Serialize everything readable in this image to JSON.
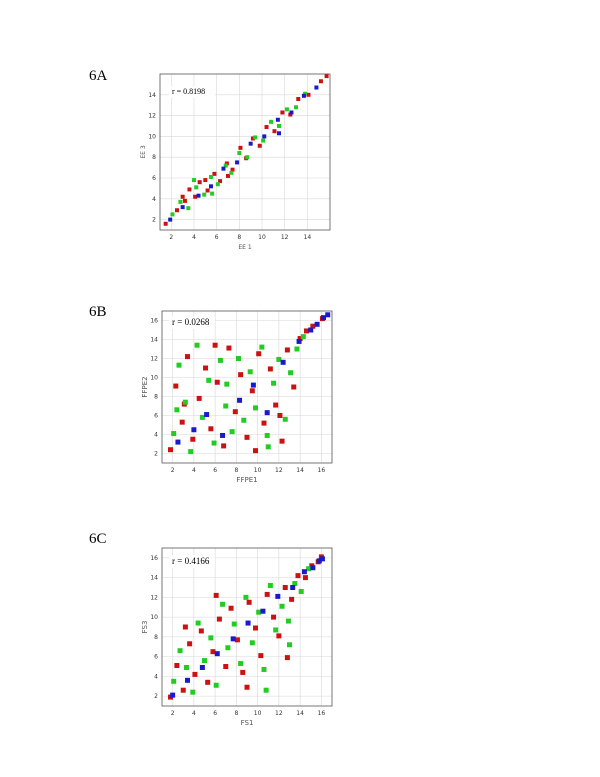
{
  "colors": {
    "red": "#cc1111",
    "green": "#22cc22",
    "blue": "#1a1acc",
    "grid": "#d8d8d8",
    "frame": "#555555"
  },
  "chart_data": [
    {
      "type": "scatter",
      "panel": "6A",
      "annotation": "r = 0.8198",
      "xlabel": "EE 1",
      "ylabel": "EE 3",
      "xlim": [
        1,
        16
      ],
      "ylim": [
        1,
        16
      ],
      "xticks": [
        2,
        4,
        6,
        8,
        10,
        12,
        14
      ],
      "yticks": [
        2,
        4,
        6,
        8,
        10,
        12,
        14
      ],
      "grid": true,
      "series": [
        {
          "color": "red",
          "points": [
            [
              1.5,
              1.6
            ],
            [
              2.5,
              2.9
            ],
            [
              3.2,
              3.8
            ],
            [
              3.6,
              4.9
            ],
            [
              4.1,
              4.2
            ],
            [
              4.5,
              5.6
            ],
            [
              5.2,
              4.8
            ],
            [
              5.8,
              6.4
            ],
            [
              6.3,
              5.7
            ],
            [
              6.9,
              7.4
            ],
            [
              7.4,
              6.8
            ],
            [
              8.1,
              8.9
            ],
            [
              8.6,
              7.9
            ],
            [
              9.2,
              9.8
            ],
            [
              9.8,
              9.1
            ],
            [
              10.4,
              10.9
            ],
            [
              11.1,
              10.5
            ],
            [
              11.8,
              12.3
            ],
            [
              12.5,
              12.1
            ],
            [
              13.2,
              13.6
            ],
            [
              14.1,
              14.0
            ],
            [
              15.2,
              15.3
            ],
            [
              15.7,
              15.8
            ],
            [
              3.0,
              4.2
            ],
            [
              5.0,
              5.8
            ],
            [
              7.0,
              6.2
            ]
          ]
        },
        {
          "color": "green",
          "points": [
            [
              2.1,
              2.5
            ],
            [
              2.8,
              3.7
            ],
            [
              3.5,
              3.1
            ],
            [
              4.2,
              5.1
            ],
            [
              4.9,
              4.4
            ],
            [
              5.5,
              6.1
            ],
            [
              6.1,
              5.4
            ],
            [
              6.8,
              7.2
            ],
            [
              7.3,
              6.5
            ],
            [
              8.0,
              8.4
            ],
            [
              8.7,
              8.0
            ],
            [
              9.4,
              9.9
            ],
            [
              10.1,
              9.6
            ],
            [
              10.8,
              11.4
            ],
            [
              11.5,
              11.0
            ],
            [
              12.2,
              12.6
            ],
            [
              13.0,
              12.8
            ],
            [
              13.8,
              14.1
            ],
            [
              4.0,
              5.8
            ],
            [
              5.6,
              4.5
            ]
          ]
        },
        {
          "color": "blue",
          "points": [
            [
              1.9,
              2.0
            ],
            [
              3.0,
              3.2
            ],
            [
              4.4,
              4.3
            ],
            [
              5.5,
              5.2
            ],
            [
              6.6,
              6.9
            ],
            [
              7.8,
              7.5
            ],
            [
              9.0,
              9.3
            ],
            [
              10.2,
              10.0
            ],
            [
              11.4,
              11.6
            ],
            [
              12.6,
              12.3
            ],
            [
              13.7,
              13.9
            ],
            [
              14.8,
              14.7
            ],
            [
              11.5,
              10.3
            ]
          ]
        }
      ]
    },
    {
      "type": "scatter",
      "panel": "6B",
      "annotation": "r = 0.0268",
      "xlabel": "FFPE1",
      "ylabel": "FFPE2",
      "xlim": [
        1,
        17
      ],
      "ylim": [
        1,
        17
      ],
      "xticks": [
        2,
        4,
        6,
        8,
        10,
        12,
        14,
        16
      ],
      "yticks": [
        2,
        4,
        6,
        8,
        10,
        12,
        14,
        16
      ],
      "grid": true,
      "series": [
        {
          "color": "red",
          "points": [
            [
              1.8,
              2.4
            ],
            [
              2.3,
              9.1
            ],
            [
              2.9,
              5.3
            ],
            [
              3.4,
              12.2
            ],
            [
              3.9,
              3.5
            ],
            [
              4.5,
              7.8
            ],
            [
              5.1,
              11.0
            ],
            [
              5.6,
              4.6
            ],
            [
              6.2,
              9.5
            ],
            [
              6.8,
              2.8
            ],
            [
              7.3,
              13.1
            ],
            [
              7.9,
              6.4
            ],
            [
              8.4,
              10.3
            ],
            [
              9.0,
              3.7
            ],
            [
              9.5,
              8.6
            ],
            [
              10.1,
              12.5
            ],
            [
              10.6,
              5.2
            ],
            [
              11.2,
              10.9
            ],
            [
              11.7,
              7.1
            ],
            [
              12.3,
              3.3
            ],
            [
              12.8,
              12.9
            ],
            [
              13.4,
              9.0
            ],
            [
              14.0,
              14.1
            ],
            [
              14.6,
              14.9
            ],
            [
              15.2,
              15.4
            ],
            [
              16.1,
              16.2
            ],
            [
              3.1,
              7.2
            ],
            [
              6.0,
              13.4
            ],
            [
              9.8,
              2.3
            ],
            [
              12.1,
              6.0
            ]
          ]
        },
        {
          "color": "green",
          "points": [
            [
              2.1,
              4.1
            ],
            [
              2.6,
              11.3
            ],
            [
              3.2,
              7.4
            ],
            [
              3.7,
              2.2
            ],
            [
              4.3,
              13.4
            ],
            [
              4.8,
              5.8
            ],
            [
              5.4,
              9.7
            ],
            [
              5.9,
              3.1
            ],
            [
              6.5,
              11.8
            ],
            [
              7.0,
              7.0
            ],
            [
              7.6,
              4.3
            ],
            [
              8.2,
              12.0
            ],
            [
              8.7,
              5.5
            ],
            [
              9.3,
              10.6
            ],
            [
              9.8,
              6.8
            ],
            [
              10.4,
              13.2
            ],
            [
              10.9,
              3.9
            ],
            [
              11.5,
              9.4
            ],
            [
              12.0,
              11.9
            ],
            [
              12.6,
              5.6
            ],
            [
              13.1,
              10.5
            ],
            [
              13.7,
              13.0
            ],
            [
              14.3,
              14.3
            ],
            [
              2.4,
              6.6
            ],
            [
              7.1,
              9.3
            ],
            [
              11.0,
              2.7
            ]
          ]
        },
        {
          "color": "blue",
          "points": [
            [
              2.5,
              3.2
            ],
            [
              4.0,
              4.5
            ],
            [
              5.2,
              6.1
            ],
            [
              6.7,
              3.9
            ],
            [
              8.3,
              7.6
            ],
            [
              9.6,
              9.2
            ],
            [
              10.9,
              6.3
            ],
            [
              12.4,
              11.6
            ],
            [
              13.9,
              13.8
            ],
            [
              15.0,
              15.0
            ],
            [
              15.6,
              15.6
            ],
            [
              16.2,
              16.3
            ],
            [
              16.6,
              16.6
            ]
          ]
        }
      ]
    },
    {
      "type": "scatter",
      "panel": "6C",
      "annotation": "r = 0.4166",
      "xlabel": "FS1",
      "ylabel": "FS3",
      "xlim": [
        1,
        17
      ],
      "ylim": [
        1,
        17
      ],
      "xticks": [
        2,
        4,
        6,
        8,
        10,
        12,
        14,
        16
      ],
      "yticks": [
        2,
        4,
        6,
        8,
        10,
        12,
        14,
        16
      ],
      "grid": true,
      "series": [
        {
          "color": "red",
          "points": [
            [
              1.8,
              1.9
            ],
            [
              2.4,
              5.1
            ],
            [
              3.0,
              2.6
            ],
            [
              3.6,
              7.3
            ],
            [
              4.1,
              4.2
            ],
            [
              4.7,
              8.6
            ],
            [
              5.3,
              3.4
            ],
            [
              5.8,
              6.5
            ],
            [
              6.4,
              9.8
            ],
            [
              7.0,
              5.0
            ],
            [
              7.5,
              10.9
            ],
            [
              8.1,
              7.7
            ],
            [
              8.6,
              4.4
            ],
            [
              9.2,
              11.5
            ],
            [
              9.8,
              8.9
            ],
            [
              10.3,
              6.1
            ],
            [
              10.9,
              12.3
            ],
            [
              11.5,
              10.0
            ],
            [
              12.0,
              8.1
            ],
            [
              12.6,
              13.0
            ],
            [
              13.2,
              11.8
            ],
            [
              13.8,
              14.2
            ],
            [
              14.5,
              14.0
            ],
            [
              15.1,
              15.2
            ],
            [
              15.7,
              15.6
            ],
            [
              16.0,
              16.1
            ],
            [
              3.2,
              9.0
            ],
            [
              6.1,
              12.2
            ],
            [
              9.0,
              2.9
            ],
            [
              12.8,
              5.9
            ]
          ]
        },
        {
          "color": "green",
          "points": [
            [
              2.1,
              3.5
            ],
            [
              2.7,
              6.6
            ],
            [
              3.3,
              4.9
            ],
            [
              3.9,
              2.4
            ],
            [
              4.4,
              9.4
            ],
            [
              5.0,
              5.6
            ],
            [
              5.6,
              7.9
            ],
            [
              6.1,
              3.1
            ],
            [
              6.7,
              11.3
            ],
            [
              7.2,
              6.9
            ],
            [
              7.8,
              9.3
            ],
            [
              8.4,
              5.3
            ],
            [
              8.9,
              12.0
            ],
            [
              9.5,
              7.4
            ],
            [
              10.1,
              10.5
            ],
            [
              10.6,
              4.7
            ],
            [
              11.2,
              13.2
            ],
            [
              11.7,
              8.7
            ],
            [
              12.3,
              11.1
            ],
            [
              12.9,
              9.6
            ],
            [
              13.5,
              13.4
            ],
            [
              14.1,
              12.6
            ],
            [
              14.8,
              14.9
            ],
            [
              10.8,
              2.6
            ],
            [
              13.0,
              7.2
            ]
          ]
        },
        {
          "color": "blue",
          "points": [
            [
              2.0,
              2.1
            ],
            [
              3.4,
              3.6
            ],
            [
              4.8,
              4.9
            ],
            [
              6.2,
              6.3
            ],
            [
              7.7,
              7.8
            ],
            [
              9.1,
              9.4
            ],
            [
              10.5,
              10.6
            ],
            [
              11.9,
              12.1
            ],
            [
              13.3,
              13.0
            ],
            [
              14.4,
              14.6
            ],
            [
              15.2,
              15.0
            ],
            [
              15.8,
              15.7
            ],
            [
              16.1,
              15.9
            ]
          ]
        }
      ]
    }
  ]
}
